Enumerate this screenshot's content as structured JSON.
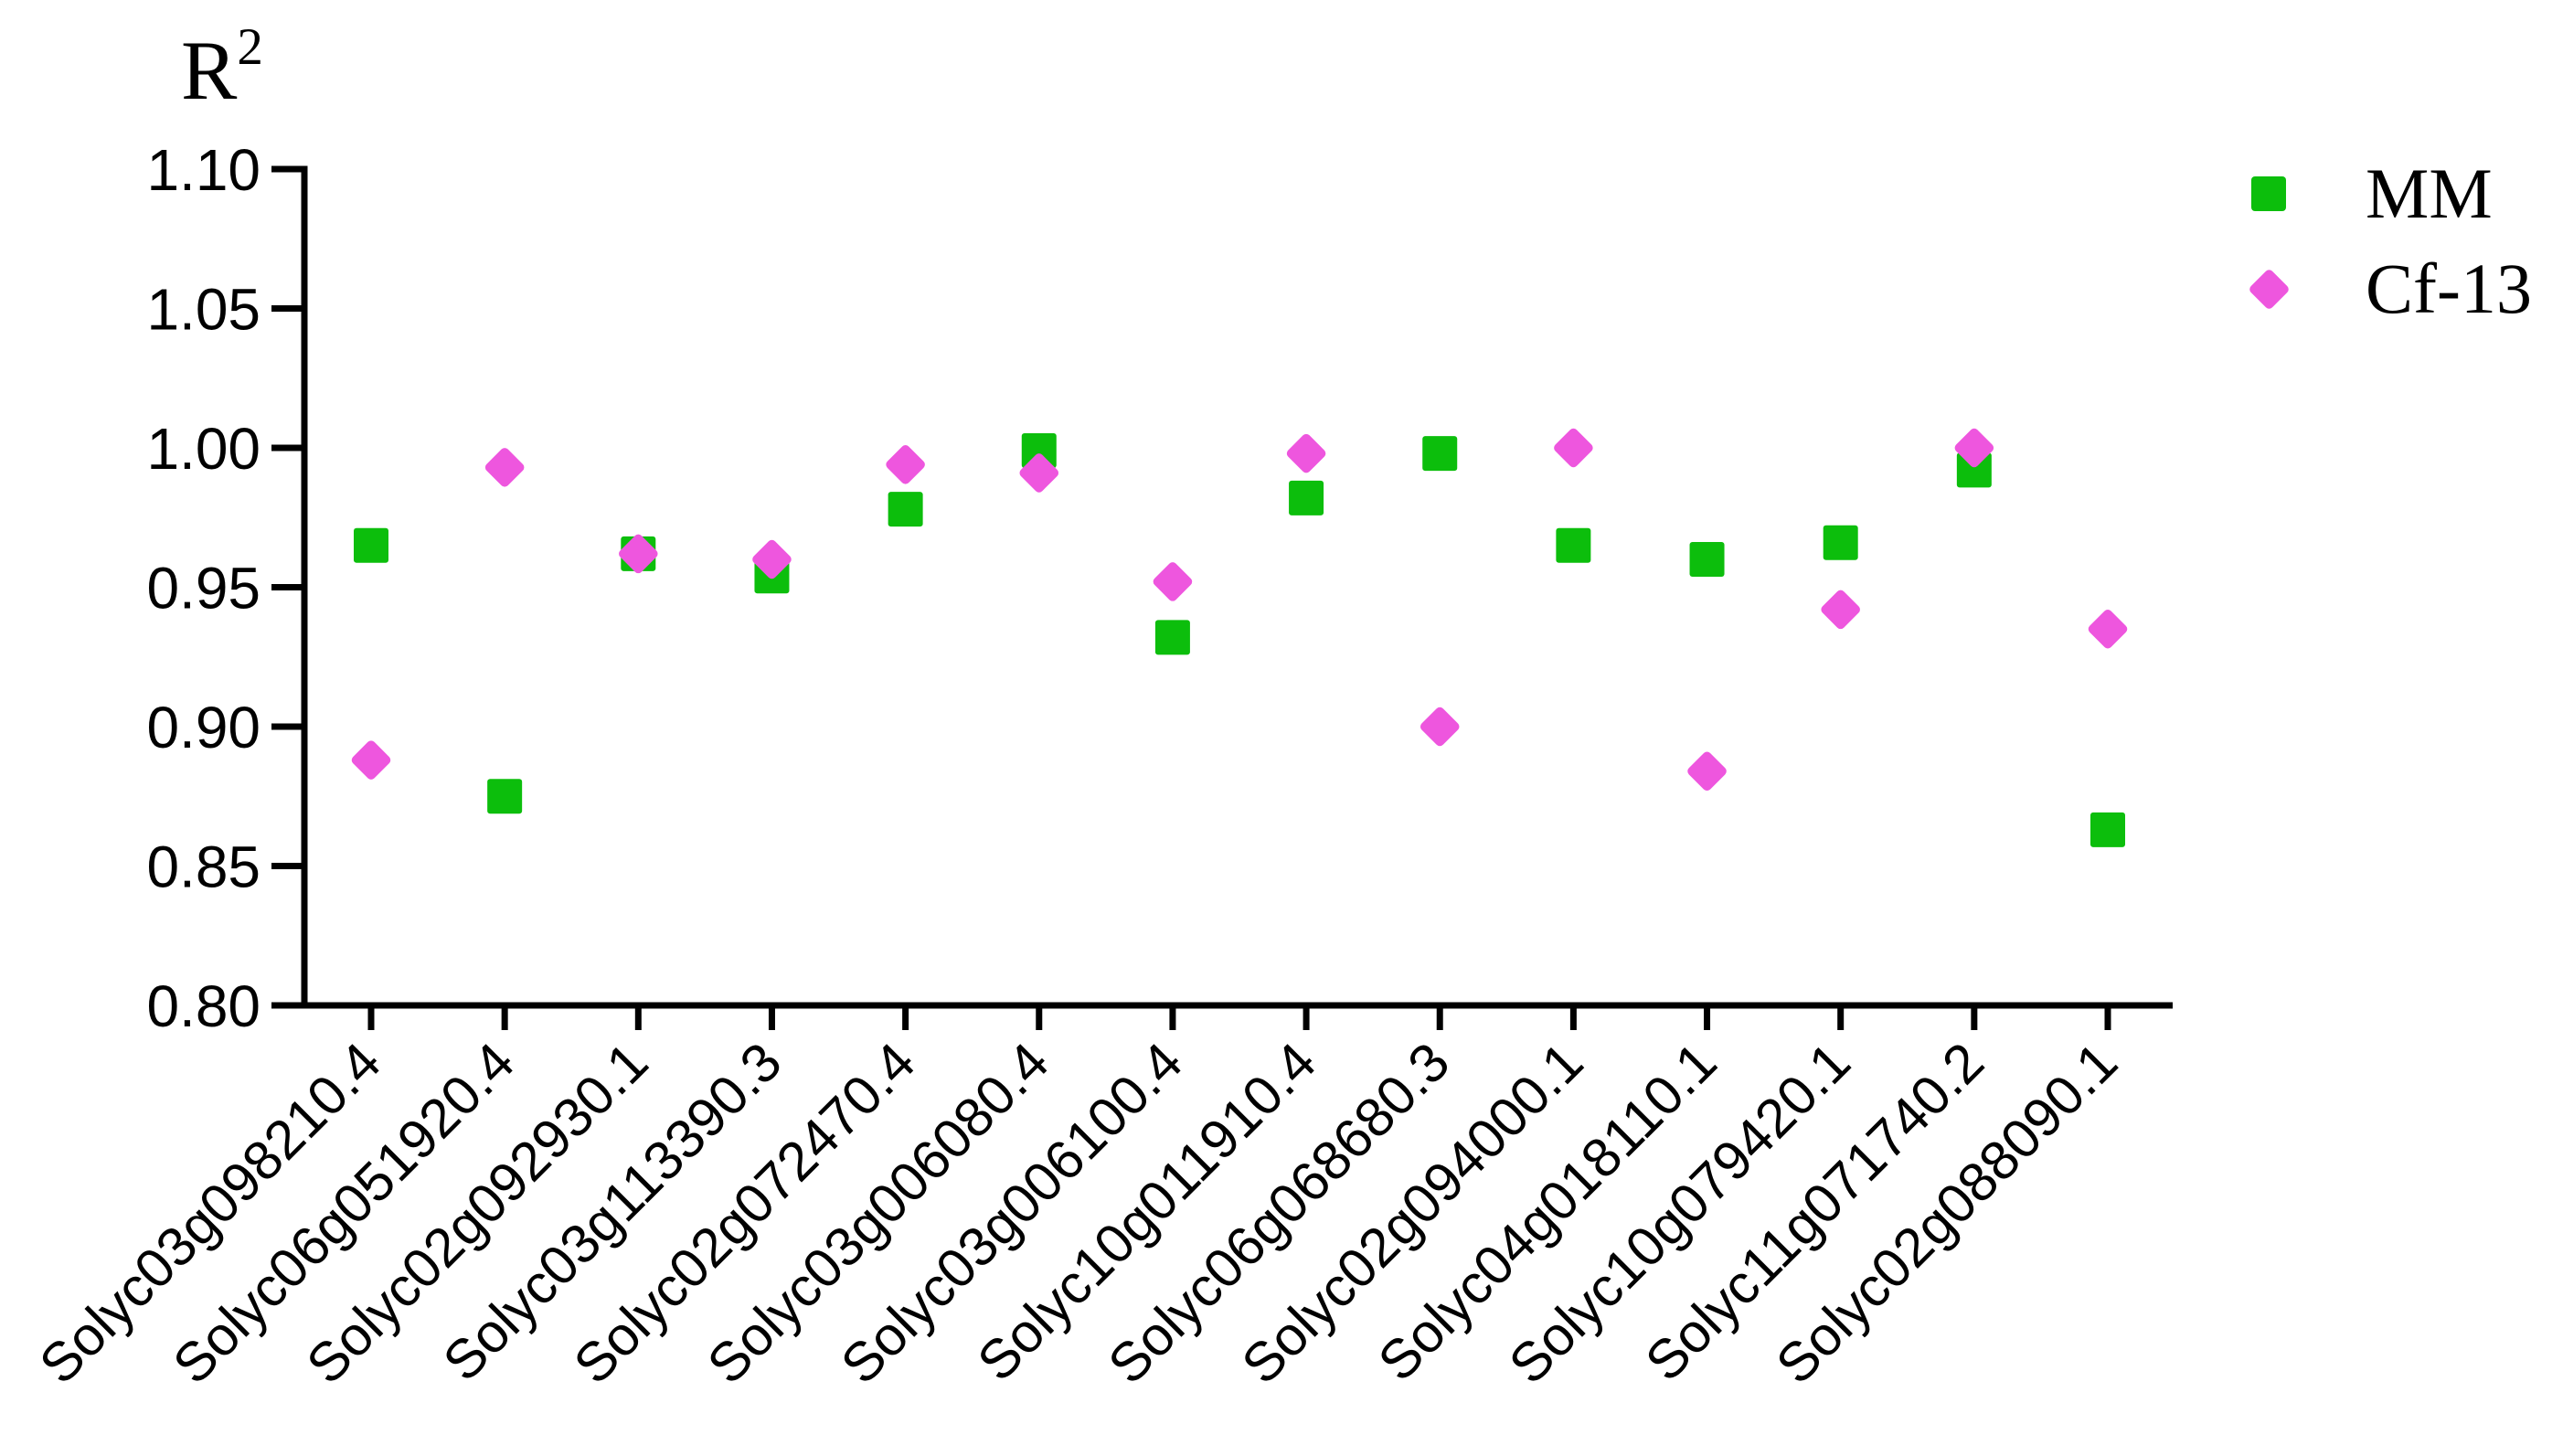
{
  "title": {
    "base": "R",
    "superscript": "2"
  },
  "legend": {
    "entries": [
      {
        "label": "MM",
        "marker": "square",
        "color": "#0CBE0C"
      },
      {
        "label": "Cf-13",
        "marker": "diamond",
        "color": "#EE56DE"
      }
    ]
  },
  "chart_data": {
    "type": "scatter",
    "title": "",
    "yaxis_title": "R2",
    "xlabel": "",
    "ylabel": "R squared",
    "ylim": [
      0.8,
      1.1
    ],
    "yticks": [
      0.8,
      0.85,
      0.9,
      0.95,
      1.0,
      1.05,
      1.1
    ],
    "ytick_labels": [
      "0.80",
      "0.85",
      "0.90",
      "0.95",
      "1.00",
      "1.05",
      "1.10"
    ],
    "grid": false,
    "legend_position": "top-right",
    "categories": [
      "Solyc03g098210.4",
      "Solyc06g051920.4",
      "Solyc02g092930.1",
      "Solyc03g113390.3",
      "Solyc02g072470.4",
      "Solyc03g006080.4",
      "Solyc03g006100.4",
      "Solyc10g011910.4",
      "Solyc06g068680.3",
      "Solyc02g094000.1",
      "Solyc04g018110.1",
      "Solyc10g079420.1",
      "Solyc11g071740.2",
      "Solyc02g088090.1"
    ],
    "series": [
      {
        "name": "MM",
        "marker": "square",
        "color": "#0CBE0C",
        "values": [
          0.965,
          0.875,
          0.962,
          0.954,
          0.978,
          0.999,
          0.932,
          0.982,
          0.998,
          0.965,
          0.96,
          0.966,
          0.992,
          0.863
        ]
      },
      {
        "name": "Cf-13",
        "marker": "diamond",
        "color": "#EE56DE",
        "values": [
          0.888,
          0.993,
          0.962,
          0.96,
          0.994,
          0.991,
          0.952,
          0.998,
          0.9,
          1.0,
          0.884,
          0.942,
          1.0,
          0.935
        ]
      }
    ]
  }
}
